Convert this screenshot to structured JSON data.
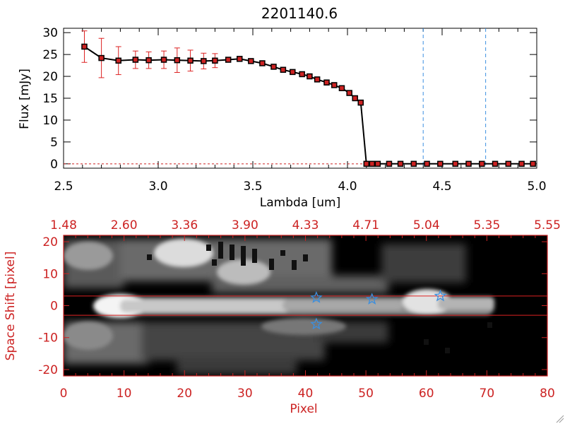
{
  "chart_data": [
    {
      "type": "line",
      "title": "2201140.6",
      "xlabel": "Lambda [um]",
      "ylabel": "Flux [mJy]",
      "xlim": [
        2.5,
        5.0
      ],
      "ylim": [
        -1,
        31
      ],
      "xticks": [
        "2.5",
        "3.0",
        "3.5",
        "4.0",
        "4.5",
        "5.0"
      ],
      "xtick_values": [
        2.5,
        3.0,
        3.5,
        4.0,
        4.5,
        5.0
      ],
      "yticks": [
        "0",
        "5",
        "10",
        "15",
        "20",
        "25",
        "30"
      ],
      "ytick_values": [
        0,
        5,
        10,
        15,
        20,
        25,
        30
      ],
      "series": [
        {
          "name": "flux",
          "color": "#000000",
          "marker_color": "#cc2222",
          "x": [
            2.61,
            2.7,
            2.79,
            2.88,
            2.95,
            3.03,
            3.1,
            3.17,
            3.24,
            3.3,
            3.37,
            3.43,
            3.49,
            3.55,
            3.61,
            3.66,
            3.71,
            3.76,
            3.8,
            3.84,
            3.89,
            3.93,
            3.97,
            4.01,
            4.04,
            4.07,
            4.1,
            4.13,
            4.16,
            4.22,
            4.28,
            4.35,
            4.42,
            4.49,
            4.57,
            4.64,
            4.71,
            4.78,
            4.85,
            4.92,
            4.98
          ],
          "y": [
            26.8,
            24.2,
            23.6,
            23.8,
            23.7,
            23.8,
            23.7,
            23.6,
            23.5,
            23.6,
            23.8,
            24.0,
            23.5,
            23.0,
            22.2,
            21.5,
            21.0,
            20.5,
            20.0,
            19.3,
            18.6,
            18.0,
            17.3,
            16.2,
            15.0,
            14.0,
            0,
            0,
            0,
            0,
            0,
            0,
            0,
            0,
            0,
            0,
            0,
            0,
            0,
            0,
            0
          ],
          "error": [
            3.6,
            4.5,
            3.2,
            2.0,
            1.9,
            2.0,
            2.8,
            2.4,
            1.8,
            1.6,
            0,
            0,
            0,
            0,
            0,
            0,
            0,
            0,
            0,
            0,
            0,
            0,
            0,
            0,
            0,
            0,
            0,
            0,
            0,
            0,
            0,
            0,
            0,
            0,
            0,
            0,
            0,
            0,
            0,
            0,
            0
          ]
        }
      ],
      "vlines": [
        4.4,
        4.73
      ],
      "vline_color": "#3a8fe0"
    },
    {
      "type": "heatmap",
      "xlabel": "Pixel",
      "ylabel": "Space Shift [pixel]",
      "xlim": [
        0,
        80
      ],
      "ylim": [
        -22,
        22
      ],
      "xticks": [
        "0",
        "10",
        "20",
        "30",
        "40",
        "50",
        "60",
        "70",
        "80"
      ],
      "xtick_values": [
        0,
        10,
        20,
        30,
        40,
        50,
        60,
        70,
        80
      ],
      "yticks": [
        "-20",
        "-10",
        "0",
        "10",
        "20"
      ],
      "ytick_values": [
        -20,
        -10,
        0,
        10,
        20
      ],
      "top_ticks": [
        "1.48",
        "2.60",
        "3.36",
        "3.90",
        "4.33",
        "4.71",
        "5.04",
        "5.35",
        "5.55"
      ],
      "hlines": [
        3,
        -3
      ],
      "hline_color": "#dd2222",
      "stars": [
        {
          "x": 41.8,
          "y": 2.5
        },
        {
          "x": 51.0,
          "y": 2.0
        },
        {
          "x": 62.3,
          "y": 3.0
        },
        {
          "x": 41.8,
          "y": -5.8
        }
      ],
      "star_color": "#3a8fe0"
    }
  ]
}
